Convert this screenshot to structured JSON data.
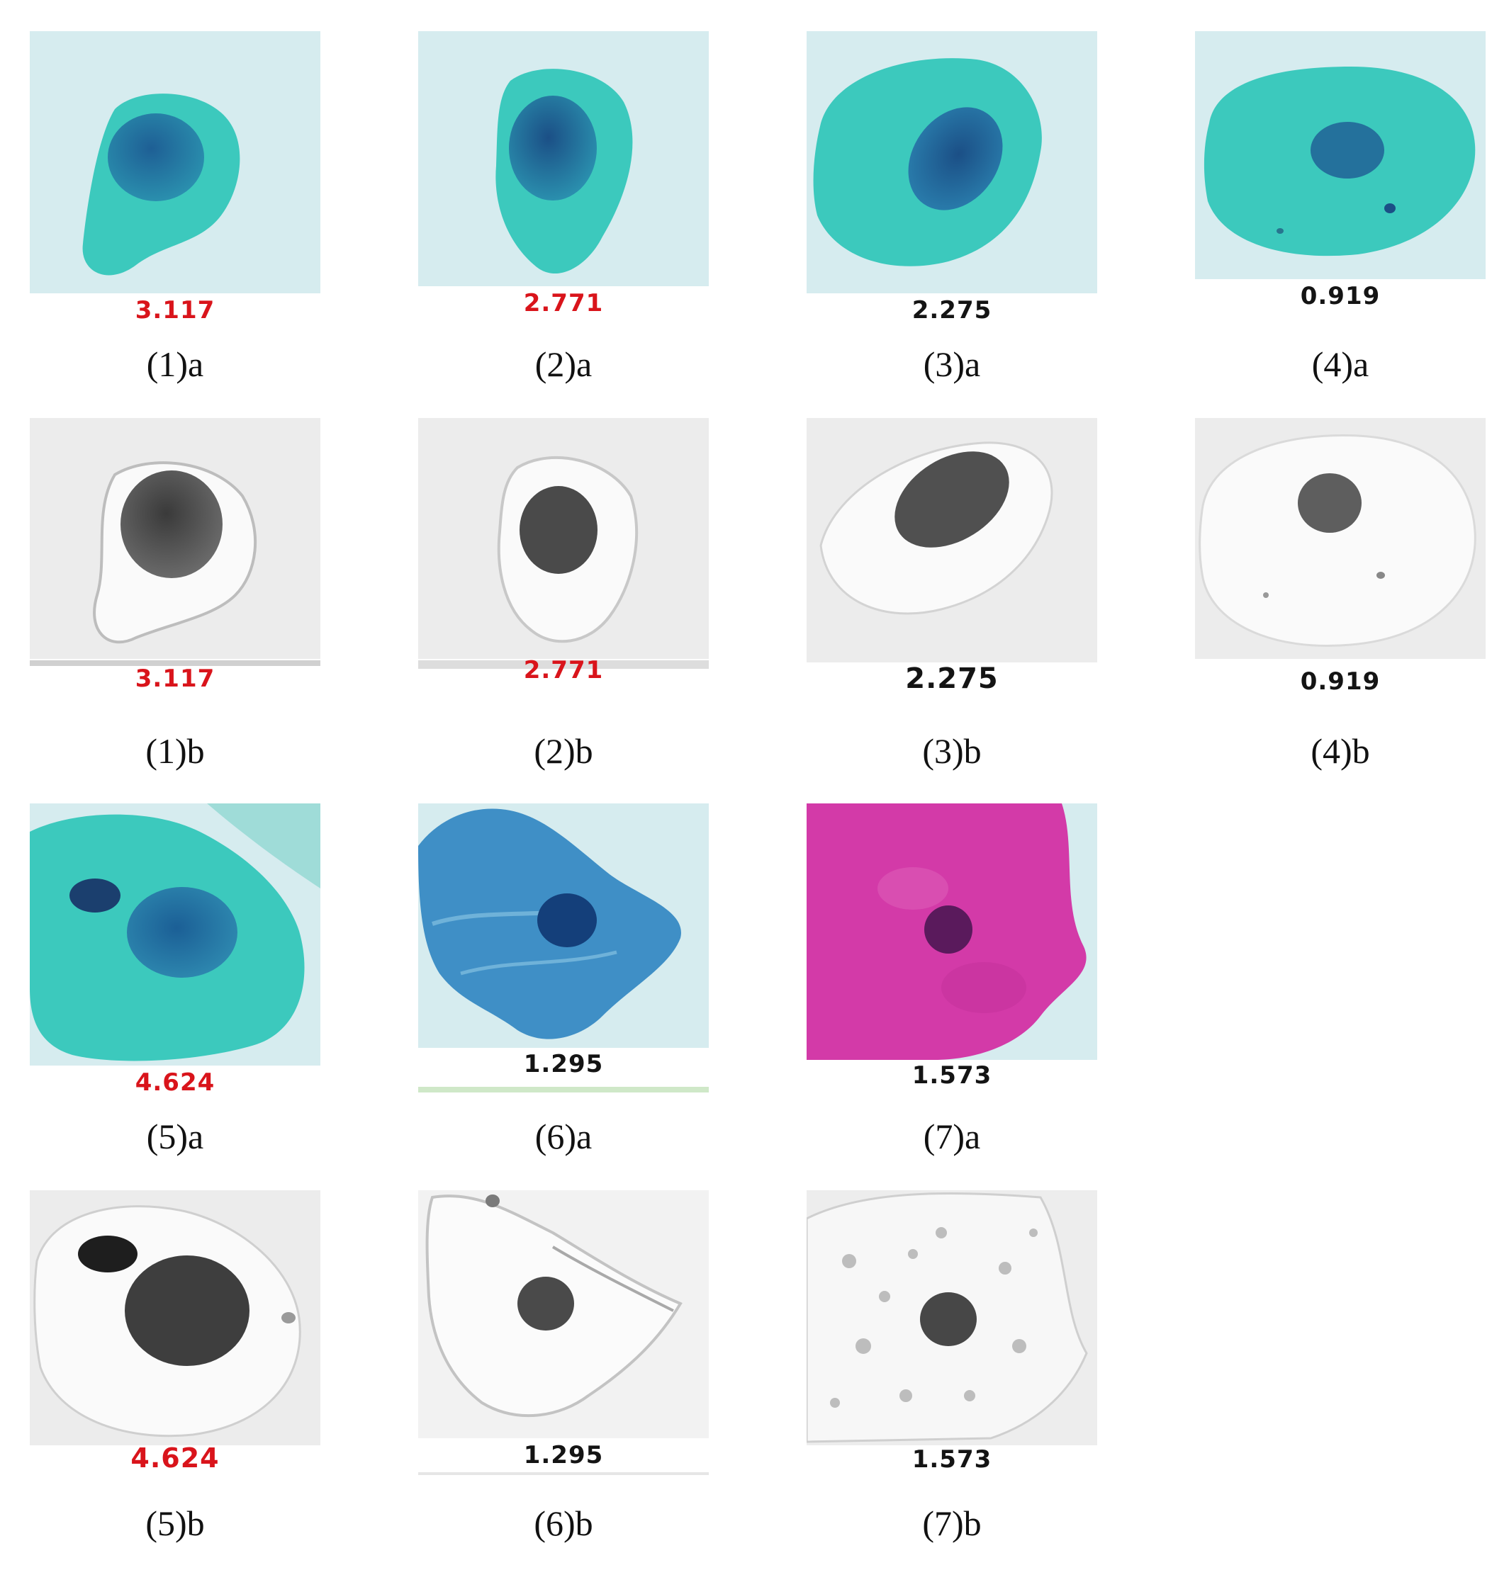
{
  "colors": {
    "flagged_value": "#d9141b",
    "normal_value": "#141414",
    "stain_cyan": "#3cc9bd",
    "stain_blue": "#3f8fc6",
    "stain_magenta": "#d33aa8",
    "nucleus_dark": "#1b4f86",
    "background_slide": "#d6ecef",
    "background_gray": "#ececec"
  },
  "panels": [
    {
      "id": "1a",
      "label": "(1)a",
      "value": "3.117",
      "flagged": true,
      "variant": "color",
      "stain": "cyan"
    },
    {
      "id": "2a",
      "label": "(2)a",
      "value": "2.771",
      "flagged": true,
      "variant": "color",
      "stain": "cyan"
    },
    {
      "id": "3a",
      "label": "(3)a",
      "value": "2.275",
      "flagged": false,
      "variant": "color",
      "stain": "cyan"
    },
    {
      "id": "4a",
      "label": "(4)a",
      "value": "0.919",
      "flagged": false,
      "variant": "color",
      "stain": "cyan"
    },
    {
      "id": "1b",
      "label": "(1)b",
      "value": "3.117",
      "flagged": true,
      "variant": "gray",
      "stain": "gray"
    },
    {
      "id": "2b",
      "label": "(2)b",
      "value": "2.771",
      "flagged": true,
      "variant": "gray",
      "stain": "gray"
    },
    {
      "id": "3b",
      "label": "(3)b",
      "value": "2.275",
      "flagged": false,
      "variant": "gray",
      "stain": "gray"
    },
    {
      "id": "4b",
      "label": "(4)b",
      "value": "0.919",
      "flagged": false,
      "variant": "gray",
      "stain": "gray"
    },
    {
      "id": "5a",
      "label": "(5)a",
      "value": "4.624",
      "flagged": true,
      "variant": "color",
      "stain": "cyan"
    },
    {
      "id": "6a",
      "label": "(6)a",
      "value": "1.295",
      "flagged": false,
      "variant": "color",
      "stain": "blue"
    },
    {
      "id": "7a",
      "label": "(7)a",
      "value": "1.573",
      "flagged": false,
      "variant": "color",
      "stain": "magenta"
    },
    {
      "id": "5b",
      "label": "(5)b",
      "value": "4.624",
      "flagged": true,
      "variant": "gray",
      "stain": "gray"
    },
    {
      "id": "6b",
      "label": "(6)b",
      "value": "1.295",
      "flagged": false,
      "variant": "gray",
      "stain": "gray"
    },
    {
      "id": "7b",
      "label": "(7)b",
      "value": "1.573",
      "flagged": false,
      "variant": "gray",
      "stain": "gray"
    }
  ]
}
